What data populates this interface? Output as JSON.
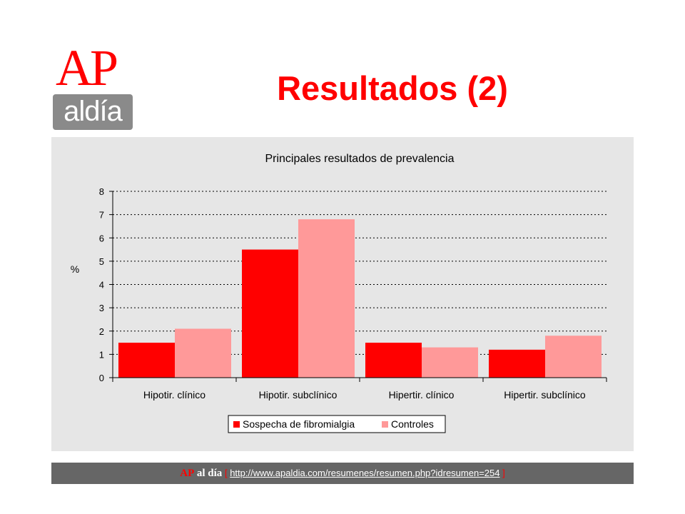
{
  "colors": {
    "brand_red": "#ff0000",
    "logo_gray": "#8a8a8a",
    "chart_bg": "#e6e6e6",
    "footer_bg": "#666666",
    "series_1": "#ff0000",
    "series_2": "#ff9999"
  },
  "logo": {
    "ap": "AP",
    "aldia": "aldía"
  },
  "title": "Resultados (2)",
  "chart_data": {
    "type": "bar",
    "title": "Principales resultados de prevalencia",
    "ylabel": "%",
    "xlabel": "",
    "ylim": [
      0,
      8
    ],
    "yticks": [
      0,
      1,
      2,
      3,
      4,
      5,
      6,
      7,
      8
    ],
    "grid": "horizontal dotted",
    "legend_position": "bottom",
    "categories": [
      "Hipotir. clínico",
      "Hipotir. subclínico",
      "Hipertir. clínico",
      "Hipertir. subclínico"
    ],
    "series": [
      {
        "name": "Sospecha de fibromialgia",
        "color": "#ff0000",
        "values": [
          1.5,
          5.5,
          1.5,
          1.2
        ]
      },
      {
        "name": "Controles",
        "color": "#ff9999",
        "values": [
          2.1,
          6.8,
          1.3,
          1.8
        ]
      }
    ]
  },
  "footer": {
    "ap": "AP",
    "aldia": "al día",
    "bracket_open": "[",
    "url": "http://www.apaldia.com/resumenes/resumen.php?idresumen=254",
    "bracket_close": "]"
  }
}
